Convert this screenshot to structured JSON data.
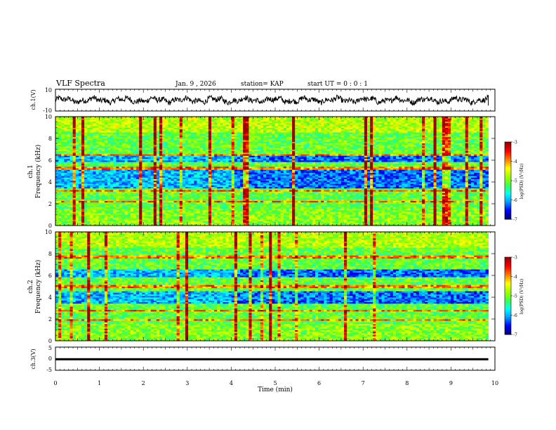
{
  "header": {
    "title": "VLF Spectra",
    "date": "Jan. 9 , 2026",
    "station": "station= KAP",
    "start_ut": "start  UT =  0 : 0  : 1"
  },
  "colors": {
    "axis": "#000000",
    "trace": "#000000",
    "background": "#ffffff",
    "colormap": [
      "#000080",
      "#0000ff",
      "#00a0ff",
      "#00ffff",
      "#40ff40",
      "#a0ff00",
      "#ffff00",
      "#ff8000",
      "#ff0000",
      "#a00000"
    ]
  },
  "chart_data": [
    {
      "type": "line",
      "name": "ch1-waveform",
      "ylabel": "ch.1(V)",
      "ylim": [
        -10,
        10
      ],
      "yticks": [
        "10",
        "-10"
      ],
      "xlim": [
        0,
        10
      ],
      "data_end_min": 9.85,
      "amplitude_range_v": [
        -5,
        5
      ]
    },
    {
      "type": "heatmap",
      "name": "ch1-spectrogram",
      "ylabel_lines": [
        "ch.1",
        "Frequency (kHz)"
      ],
      "ylim": [
        0,
        10
      ],
      "yticks": [
        "0",
        "2",
        "4",
        "6",
        "8",
        "10"
      ],
      "xlim": [
        0,
        10
      ],
      "data_end_min": 9.85,
      "quiet_bands_khz": [
        [
          3.5,
          5.2
        ],
        [
          5.8,
          6.4
        ]
      ],
      "line_features_khz": [
        2.2,
        3.2,
        5.3,
        6.5
      ],
      "colorbar": {
        "label": "log(PSD) (V²/Hz)",
        "range": [
          -7,
          -3
        ],
        "ticks": [
          "-3",
          "-4",
          "-5",
          "-6",
          "-7"
        ]
      }
    },
    {
      "type": "heatmap",
      "name": "ch2-spectrogram",
      "ylabel_lines": [
        "ch.2",
        "Frequency (kHz)"
      ],
      "ylim": [
        0,
        10
      ],
      "yticks": [
        "0",
        "2",
        "4",
        "6",
        "8",
        "10"
      ],
      "xlim": [
        0,
        10
      ],
      "data_end_min": 9.85,
      "quiet_bands_khz": [
        [
          3.4,
          4.6
        ],
        [
          5.8,
          6.6
        ]
      ],
      "line_features_khz": [
        1.9,
        2.8,
        5.0,
        7.7
      ],
      "colorbar": {
        "label": "log(PSD) (V²/Hz)",
        "range": [
          -7,
          -3
        ],
        "ticks": [
          "-3",
          "-4",
          "-5",
          "-6",
          "-7"
        ]
      }
    },
    {
      "type": "line",
      "name": "ch3-waveform",
      "ylabel": "ch.3(V)",
      "ylim": [
        -5,
        5
      ],
      "yticks": [
        "5",
        "0",
        "-5"
      ],
      "xlim": [
        0,
        10
      ],
      "data_end_min": 9.85,
      "level_v": [
        -0.6,
        0.2
      ]
    }
  ],
  "x_axis": {
    "label": "Time (min)",
    "ticks": [
      "0",
      "1",
      "2",
      "3",
      "4",
      "5",
      "6",
      "7",
      "8",
      "9",
      "10"
    ]
  }
}
